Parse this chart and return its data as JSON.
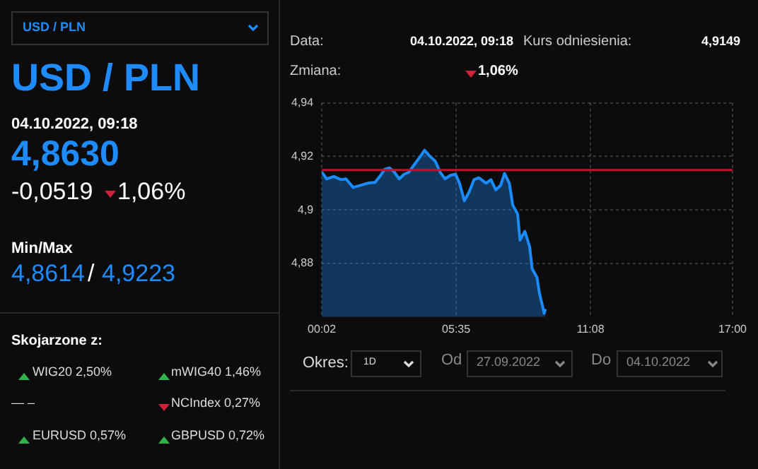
{
  "chart_data": {
    "type": "area",
    "title": "USD / PLN",
    "annotations": [
      "USD / PLN",
      "04.10.2022, 09:18",
      "4,8630",
      "-0,0519",
      "1,06%",
      "Min/Max",
      "4,8614",
      "/",
      "4,9223",
      "Skojarzone z:",
      "WIG20 2,50%",
      "mWIG40 1,46%",
      "— –",
      "NCIndex 0,27%",
      "EURUSD 0,57%",
      "GBPUSD 0,72%",
      "Data:",
      "04.10.2022, 09:18",
      "Kurs odniesienia:",
      "4,9149",
      "Zmiana:",
      "1,06%",
      "Okres:",
      "1D",
      "Od",
      "27.09.2022",
      "Do",
      "04.10.2022"
    ],
    "x": [
      0.033,
      0.23,
      0.53,
      0.83,
      1.03,
      1.33,
      1.63,
      1.93,
      2.23,
      2.43,
      2.63,
      2.83,
      3.03,
      3.23,
      3.43,
      3.63,
      3.89,
      4.09,
      4.28,
      4.48,
      4.72,
      4.92,
      5.12,
      5.36,
      5.56,
      5.72,
      5.92,
      6.12,
      6.32,
      6.52,
      6.82,
      7.02,
      7.22,
      7.42,
      7.58,
      7.78,
      7.92,
      8.12,
      8.22,
      8.42,
      8.62,
      8.72,
      8.92,
      9.02,
      9.22,
      9.27
    ],
    "series": [
      {
        "color": "#1a8cff",
        "values": [
          4.9141,
          4.9116,
          4.9125,
          4.9113,
          4.9116,
          4.9084,
          4.9092,
          4.91,
          4.9103,
          4.9125,
          4.9152,
          4.9157,
          4.9141,
          4.9116,
          4.9133,
          4.9141,
          4.9174,
          4.9198,
          4.9223,
          4.9202,
          4.9182,
          4.9141,
          4.9116,
          4.913,
          4.9133,
          4.91,
          4.9034,
          4.9067,
          4.9113,
          4.912,
          4.91,
          4.9113,
          4.9075,
          4.9092,
          4.9136,
          4.91,
          4.9018,
          4.8985,
          4.8887,
          4.892,
          4.8862,
          4.878,
          4.8748,
          4.869,
          4.8614,
          4.863
        ]
      }
    ],
    "xlim": [
      0.033,
      17
    ],
    "xticks": [
      {
        "value": 0.033,
        "label": "00:02"
      },
      {
        "value": 5.583,
        "label": "05:35"
      },
      {
        "value": 11.133,
        "label": "11:08"
      },
      {
        "value": 17,
        "label": "17:00"
      }
    ],
    "ylim": [
      4.86,
      4.94
    ],
    "yticks": [
      {
        "value": 4.88,
        "label": "4,88"
      },
      {
        "value": 4.9,
        "label": "4,9"
      },
      {
        "value": 4.92,
        "label": "4,92"
      },
      {
        "value": 4.94,
        "label": "4,94"
      }
    ],
    "ref_lines": [
      {
        "axis": "y",
        "value": 4.9149,
        "color": "#c8102e"
      }
    ],
    "grid": true,
    "legend": false,
    "marker": "none"
  }
}
